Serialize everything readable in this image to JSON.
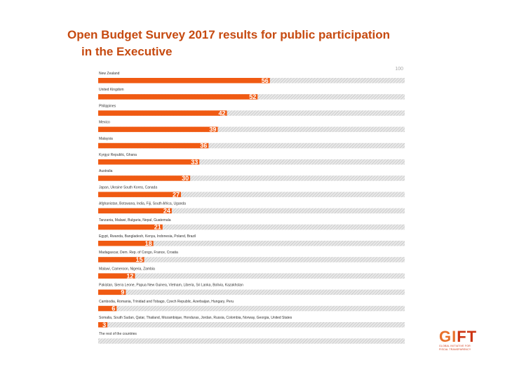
{
  "slide": {
    "title_line1": "Open Budget Survey 2017 results for public participation",
    "title_line2": "in the Executive"
  },
  "logo": {
    "word_part1": "GI",
    "word_part2": "FT",
    "tagline_line1": "GLOBAL INITIATIVE FOR",
    "tagline_line2": "FISCAL TRANSPARENCY"
  },
  "chart_data": {
    "type": "bar",
    "orientation": "horizontal",
    "title": "",
    "xlabel": "",
    "ylabel": "",
    "xlim": [
      0,
      100
    ],
    "max_label": "100",
    "categories": [
      "New Zealand",
      "United Kingdom",
      "Philippines",
      "Mexico",
      "Malaysia",
      "Kyrgyz Republic, Ghana",
      "Australia",
      "Japan, Ukraine South Korea, Canada",
      "Afghanistan, Botswana, India, Fiji, South Africa, Uganda",
      "Tanzania, Malawi, Bulgaria, Nepal, Guatemala",
      "Egypt, Rwanda, Bangladesh, Kenya, Indonesia, Poland, Brazil",
      "Madagascar, Dem. Rep. of Congo, France, Croatia",
      "Malawi, Cameroon, Nigeria, Zambia",
      "Pakistan, Sierra Leone, Papua New Guinea, Vietnam, Liberia, Sri Lanka, Bolivia, Kazakhstan",
      "Cambodia, Romania, Trinidad and Tobago, Czech Republic, Azerbaijan, Hungary, Peru",
      "Somalia, South Sudan, Qatar, Thailand, Mozambique, Honduras, Jordan, Russia, Colombia, Norway, Georgia, United States",
      "The rest of the countries"
    ],
    "values": [
      56,
      52,
      42,
      39,
      36,
      33,
      30,
      27,
      24,
      21,
      18,
      15,
      12,
      9,
      6,
      3,
      0
    ],
    "colors": {
      "bar": "#f05a12",
      "background_track": "#d9d9d9",
      "title": "#c64a10"
    },
    "grid": false,
    "legend": "none"
  }
}
